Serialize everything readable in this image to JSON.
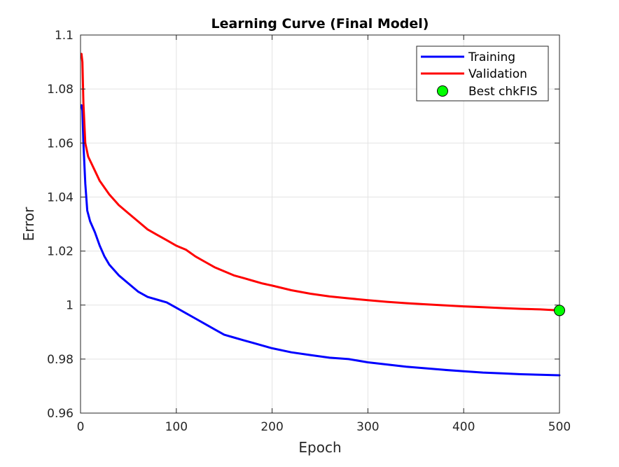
{
  "chart_data": {
    "type": "line",
    "title": "Learning Curve (Final Model)",
    "xlabel": "Epoch",
    "ylabel": "Error",
    "xlim": [
      0,
      500
    ],
    "ylim": [
      0.96,
      1.1
    ],
    "x_ticks": [
      0,
      100,
      200,
      300,
      400,
      500
    ],
    "x_tick_labels": [
      "0",
      "100",
      "200",
      "300",
      "400",
      "500"
    ],
    "y_ticks": [
      0.96,
      0.98,
      1.0,
      1.02,
      1.04,
      1.06,
      1.08,
      1.1
    ],
    "y_tick_labels": [
      "0.96",
      "0.98",
      "1",
      "1.02",
      "1.04",
      "1.06",
      "1.08",
      "1.1"
    ],
    "grid": true,
    "legend_position": "top-right",
    "series": [
      {
        "name": "Training",
        "color": "#0000ff",
        "x": [
          1,
          2,
          3,
          5,
          7,
          10,
          15,
          20,
          25,
          30,
          40,
          50,
          60,
          70,
          80,
          90,
          100,
          110,
          120,
          130,
          140,
          150,
          160,
          170,
          180,
          190,
          200,
          220,
          240,
          260,
          280,
          300,
          320,
          340,
          360,
          380,
          400,
          420,
          440,
          460,
          480,
          500
        ],
        "y": [
          1.074,
          1.072,
          1.06,
          1.045,
          1.035,
          1.031,
          1.027,
          1.022,
          1.018,
          1.015,
          1.011,
          1.008,
          1.005,
          1.003,
          1.002,
          1.001,
          0.999,
          0.997,
          0.995,
          0.993,
          0.991,
          0.989,
          0.988,
          0.987,
          0.986,
          0.985,
          0.984,
          0.9825,
          0.9815,
          0.9805,
          0.98,
          0.9788,
          0.978,
          0.9772,
          0.9766,
          0.976,
          0.9755,
          0.975,
          0.9747,
          0.9744,
          0.9742,
          0.974
        ]
      },
      {
        "name": "Validation",
        "color": "#ff0000",
        "x": [
          1,
          2,
          3,
          5,
          8,
          12,
          16,
          20,
          30,
          40,
          50,
          60,
          70,
          80,
          90,
          100,
          110,
          120,
          130,
          140,
          150,
          160,
          170,
          180,
          190,
          200,
          220,
          240,
          260,
          280,
          300,
          320,
          340,
          360,
          380,
          400,
          420,
          440,
          460,
          480,
          500
        ],
        "y": [
          1.093,
          1.09,
          1.075,
          1.06,
          1.055,
          1.052,
          1.049,
          1.046,
          1.041,
          1.037,
          1.034,
          1.031,
          1.028,
          1.026,
          1.024,
          1.022,
          1.0205,
          1.018,
          1.016,
          1.014,
          1.0125,
          1.011,
          1.01,
          1.009,
          1.008,
          1.0072,
          1.0055,
          1.0042,
          1.0032,
          1.0025,
          1.0018,
          1.0012,
          1.0007,
          1.0003,
          0.9999,
          0.9995,
          0.9992,
          0.9989,
          0.9986,
          0.9984,
          0.998
        ]
      }
    ],
    "markers": [
      {
        "name": "Best chkFIS",
        "x": 500,
        "y": 0.998,
        "color": "#00ff00"
      }
    ]
  }
}
